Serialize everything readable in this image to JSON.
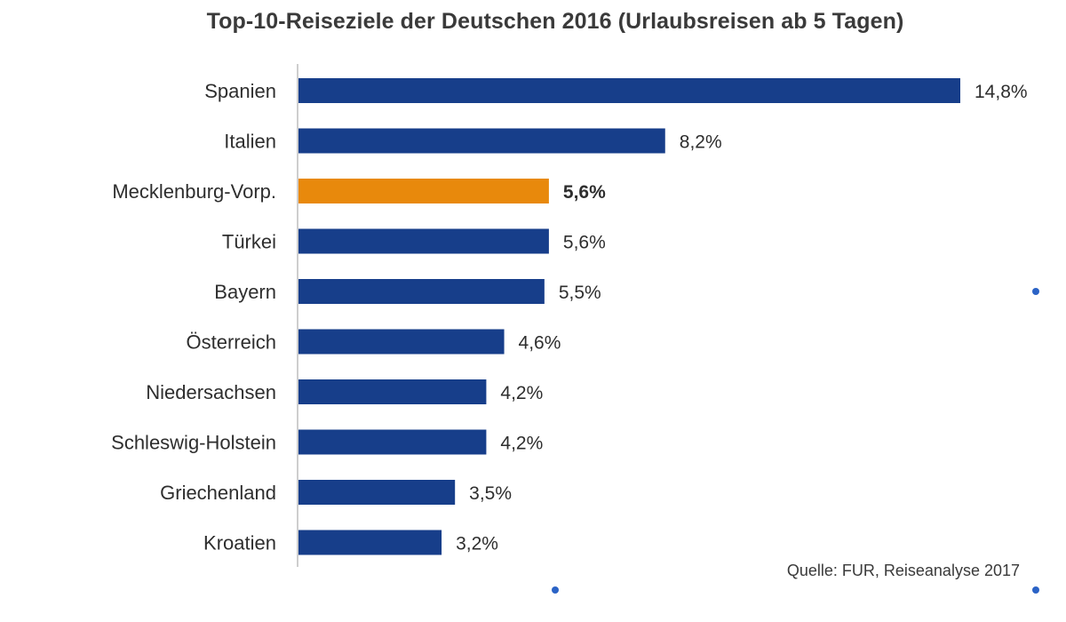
{
  "title": "Top-10-Reiseziele der Deutschen 2016 (Urlaubsreisen ab 5 Tagen)",
  "source": "Quelle: FUR, Reiseanalyse 2017",
  "colors": {
    "bar": "#173e8a",
    "highlight": "#e8890c",
    "axis": "#bdbdbd",
    "dot": "#2b63c6"
  },
  "chart_data": {
    "type": "bar",
    "orientation": "horizontal",
    "title": "Top-10-Reiseziele der Deutschen 2016 (Urlaubsreisen ab 5 Tagen)",
    "categories": [
      "Spanien",
      "Italien",
      "Mecklenburg-Vorp.",
      "Türkei",
      "Bayern",
      "Österreich",
      "Niedersachsen",
      "Schleswig-Holstein",
      "Griechenland",
      "Kroatien"
    ],
    "values": [
      14.8,
      8.2,
      5.6,
      5.6,
      5.5,
      4.6,
      4.2,
      4.2,
      3.5,
      3.2
    ],
    "value_labels": [
      "14,8%",
      "8,2%",
      "5,6%",
      "5,6%",
      "5,5%",
      "4,6%",
      "4,2%",
      "4,2%",
      "3,5%",
      "3,2%"
    ],
    "highlighted": [
      "Mecklenburg-Vorp."
    ],
    "xlim": [
      0,
      14.8
    ],
    "grid": false,
    "legend": "none",
    "unit": "%"
  }
}
